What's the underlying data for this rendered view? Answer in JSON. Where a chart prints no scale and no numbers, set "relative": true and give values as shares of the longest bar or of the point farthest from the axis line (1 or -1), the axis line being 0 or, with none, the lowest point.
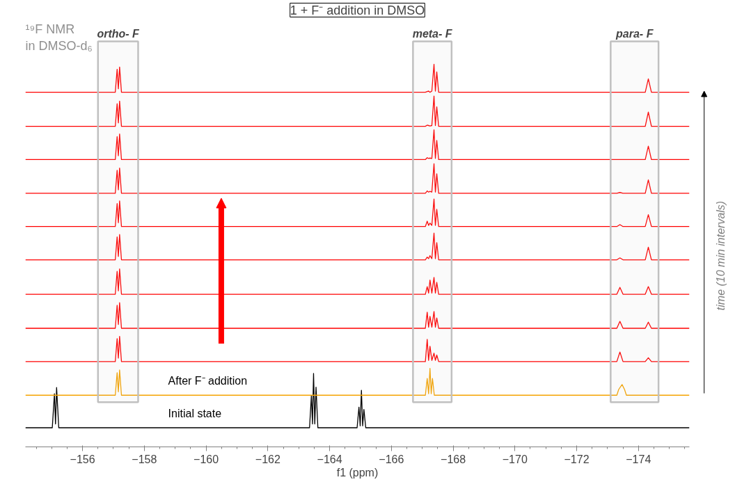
{
  "chart_data": {
    "type": "line",
    "relative": true,
    "title": "1 + F⁻ addition in DMSO",
    "xlabel": "f1 (ppm)",
    "xlim": [
      -154.15,
      -175.65
    ],
    "xticks": [
      -156,
      -158,
      -160,
      -162,
      -164,
      -166,
      -168,
      -170,
      -172,
      -174
    ],
    "grid": false,
    "marker": "none",
    "line_style": "solid",
    "annotations": [
      "¹⁹F NMR\nin DMSO-d₆",
      "time (10 min intervals)"
    ],
    "bands": [
      {
        "axis": "x",
        "from": -156.5,
        "to": -157.8,
        "label": "ortho- F",
        "color": "#c0c0c0"
      },
      {
        "axis": "x",
        "from": -166.7,
        "to": -167.95,
        "label": "meta- F",
        "color": "#c0c0c0"
      },
      {
        "axis": "x",
        "from": -173.1,
        "to": -174.65,
        "label": "para- F",
        "color": "#c0c0c0"
      }
    ],
    "series": [
      {
        "name": "Initial state",
        "color": "#000000",
        "x": [
          -154.15,
          -155.02,
          -155.09,
          -155.125,
          -155.16,
          -155.23,
          -163.35,
          -163.41,
          -163.445,
          -163.48,
          -163.52,
          -163.56,
          -163.62,
          -164.89,
          -164.95,
          -164.99,
          -165.03,
          -165.07,
          -165.11,
          -165.17,
          -175.65
        ],
        "values": [
          0.05,
          0.05,
          0.139,
          0.06,
          0.155,
          0.05,
          0.05,
          0.134,
          0.06,
          0.192,
          0.06,
          0.156,
          0.05,
          0.05,
          0.104,
          0.055,
          0.148,
          0.055,
          0.098,
          0.05,
          0.05
        ]
      },
      {
        "name": "After F⁻ addition",
        "color": "#f5a300",
        "x": [
          -154.15,
          -157.06,
          -157.12,
          -157.16,
          -157.2,
          -157.26,
          -167.1,
          -167.16,
          -167.205,
          -167.25,
          -167.29,
          -167.33,
          -167.39,
          -173.3,
          -173.36,
          -173.47,
          -173.55,
          -173.61,
          -175.65
        ],
        "values": [
          0.135,
          0.135,
          0.194,
          0.144,
          0.201,
          0.135,
          0.135,
          0.179,
          0.139,
          0.205,
          0.139,
          0.179,
          0.135,
          0.135,
          0.15,
          0.163,
          0.15,
          0.135,
          0.135
        ]
      },
      {
        "color": "#ff0000",
        "x": [
          -154.15,
          -157.06,
          -157.12,
          -157.16,
          -157.2,
          -157.26,
          -167.1,
          -167.16,
          -167.205,
          -167.25,
          -167.31,
          -167.38,
          -167.425,
          -167.47,
          -167.53,
          -173.3,
          -173.4,
          -173.5,
          -174.22,
          -174.32,
          -174.42,
          -175.65
        ],
        "values": [
          0.223,
          0.223,
          0.283,
          0.232,
          0.289,
          0.223,
          0.223,
          0.281,
          0.226,
          0.263,
          0.226,
          0.245,
          0.226,
          0.24,
          0.223,
          0.223,
          0.248,
          0.223,
          0.223,
          0.233,
          0.223,
          0.223
        ]
      },
      {
        "color": "#ff0000",
        "x": [
          -154.15,
          -157.06,
          -157.12,
          -157.16,
          -157.2,
          -157.26,
          -167.1,
          -167.16,
          -167.205,
          -167.25,
          -167.31,
          -167.38,
          -167.425,
          -167.47,
          -167.53,
          -173.3,
          -173.4,
          -173.5,
          -174.22,
          -174.32,
          -174.42,
          -175.65
        ],
        "values": [
          0.31,
          0.31,
          0.37,
          0.32,
          0.377,
          0.31,
          0.31,
          0.352,
          0.313,
          0.341,
          0.313,
          0.354,
          0.313,
          0.337,
          0.31,
          0.31,
          0.328,
          0.31,
          0.31,
          0.326,
          0.31,
          0.31
        ]
      },
      {
        "color": "#ff0000",
        "x": [
          -154.15,
          -157.06,
          -157.12,
          -157.16,
          -157.2,
          -157.26,
          -167.1,
          -167.16,
          -167.205,
          -167.25,
          -167.31,
          -167.38,
          -167.425,
          -167.47,
          -167.53,
          -173.3,
          -173.4,
          -173.5,
          -174.22,
          -174.32,
          -174.42,
          -175.65
        ],
        "values": [
          0.399,
          0.399,
          0.459,
          0.408,
          0.465,
          0.399,
          0.399,
          0.419,
          0.402,
          0.436,
          0.402,
          0.443,
          0.402,
          0.43,
          0.399,
          0.399,
          0.417,
          0.399,
          0.399,
          0.419,
          0.399,
          0.399
        ]
      },
      {
        "color": "#ff0000",
        "x": [
          -154.15,
          -157.06,
          -157.12,
          -157.16,
          -157.2,
          -157.26,
          -167.1,
          -167.16,
          -167.205,
          -167.25,
          -167.31,
          -167.38,
          -167.425,
          -167.47,
          -167.53,
          -173.3,
          -173.4,
          -173.5,
          -174.22,
          -174.32,
          -174.42,
          -175.65
        ],
        "values": [
          0.489,
          0.489,
          0.549,
          0.498,
          0.555,
          0.489,
          0.489,
          0.496,
          0.492,
          0.5,
          0.492,
          0.559,
          0.492,
          0.534,
          0.489,
          0.489,
          0.494,
          0.489,
          0.489,
          0.522,
          0.489,
          0.489
        ]
      },
      {
        "color": "#ff0000",
        "x": [
          -154.15,
          -157.06,
          -157.12,
          -157.16,
          -157.2,
          -157.26,
          -167.1,
          -167.16,
          -167.205,
          -167.25,
          -167.31,
          -167.38,
          -167.425,
          -167.47,
          -167.53,
          -173.3,
          -173.4,
          -173.5,
          -174.22,
          -174.32,
          -174.42,
          -175.65
        ],
        "values": [
          0.576,
          0.576,
          0.636,
          0.586,
          0.643,
          0.576,
          0.576,
          0.59,
          0.579,
          0.585,
          0.579,
          0.648,
          0.579,
          0.621,
          0.576,
          0.576,
          0.581,
          0.576,
          0.576,
          0.607,
          0.576,
          0.576
        ]
      },
      {
        "color": "#ff0000",
        "x": [
          -154.15,
          -157.06,
          -157.12,
          -157.16,
          -157.2,
          -157.26,
          -167.1,
          -167.16,
          -167.205,
          -167.25,
          -167.31,
          -167.38,
          -167.425,
          -167.47,
          -167.53,
          -173.3,
          -173.4,
          -173.5,
          -174.22,
          -174.32,
          -174.42,
          -175.65
        ],
        "values": [
          0.663,
          0.663,
          0.723,
          0.672,
          0.729,
          0.663,
          0.663,
          0.669,
          0.666,
          0.668,
          0.666,
          0.74,
          0.666,
          0.714,
          0.663,
          0.663,
          0.665,
          0.663,
          0.663,
          0.698,
          0.663,
          0.663
        ]
      },
      {
        "color": "#ff0000",
        "x": [
          -154.15,
          -157.06,
          -157.12,
          -157.16,
          -157.2,
          -157.26,
          -167.1,
          -167.16,
          -167.205,
          -167.25,
          -167.31,
          -167.38,
          -167.425,
          -167.47,
          -167.53,
          -173.3,
          -173.4,
          -173.5,
          -174.22,
          -174.32,
          -174.42,
          -175.65
        ],
        "values": [
          0.751,
          0.751,
          0.811,
          0.761,
          0.818,
          0.751,
          0.751,
          0.756,
          0.754,
          0.755,
          0.754,
          0.829,
          0.754,
          0.801,
          0.751,
          0.751,
          0.751,
          0.751,
          0.751,
          0.786,
          0.751,
          0.751
        ]
      },
      {
        "color": "#ff0000",
        "x": [
          -154.15,
          -157.06,
          -157.12,
          -157.16,
          -157.2,
          -157.26,
          -167.1,
          -167.16,
          -167.205,
          -167.25,
          -167.31,
          -167.38,
          -167.425,
          -167.47,
          -167.53,
          -173.3,
          -173.4,
          -173.5,
          -174.22,
          -174.32,
          -174.42,
          -175.65
        ],
        "values": [
          0.838,
          0.838,
          0.897,
          0.847,
          0.904,
          0.838,
          0.838,
          0.841,
          0.84,
          0.839,
          0.84,
          0.917,
          0.84,
          0.889,
          0.838,
          0.838,
          0.838,
          0.838,
          0.838,
          0.875,
          0.838,
          0.838
        ]
      },
      {
        "color": "#ff0000",
        "x": [
          -154.15,
          -157.06,
          -157.12,
          -157.16,
          -157.2,
          -157.26,
          -167.1,
          -167.16,
          -167.205,
          -167.25,
          -167.31,
          -167.38,
          -167.425,
          -167.47,
          -167.53,
          -173.3,
          -173.4,
          -173.5,
          -174.22,
          -174.32,
          -174.42,
          -175.65
        ],
        "values": [
          0.927,
          0.927,
          0.987,
          0.936,
          0.993,
          0.927,
          0.927,
          0.929,
          0.93,
          0.927,
          0.93,
          1.0,
          0.93,
          0.98,
          0.927,
          0.927,
          0.927,
          0.927,
          0.927,
          0.962,
          0.927,
          0.927
        ]
      }
    ]
  }
}
